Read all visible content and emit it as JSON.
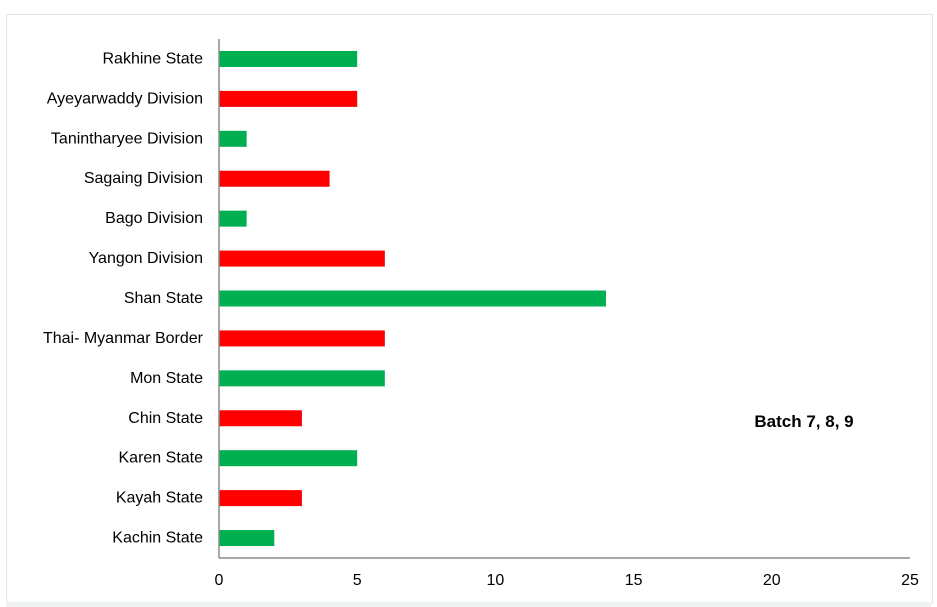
{
  "chart_data": {
    "type": "bar",
    "orientation": "horizontal",
    "categories": [
      "Rakhine State",
      "Ayeyarwaddy Division",
      "Tanintharyee Division",
      "Sagaing Division",
      "Bago Division",
      "Yangon Division",
      "Shan State",
      "Thai- Myanmar Border",
      "Mon State",
      "Chin State",
      "Karen State",
      "Kayah State",
      "Kachin State"
    ],
    "values": [
      5,
      5,
      1,
      4,
      1,
      6,
      14,
      6,
      6,
      3,
      5,
      3,
      2
    ],
    "bar_colors": [
      "#00b050",
      "#ff0000",
      "#00b050",
      "#ff0000",
      "#00b050",
      "#ff0000",
      "#00b050",
      "#ff0000",
      "#00b050",
      "#ff0000",
      "#00b050",
      "#ff0000",
      "#00b050"
    ],
    "x_ticks": [
      "0",
      "5",
      "10",
      "15",
      "20",
      "25"
    ],
    "xlim": [
      0,
      25
    ],
    "title": "",
    "xlabel": "",
    "ylabel": "",
    "grid": false,
    "legend": "none",
    "annotation": "Batch 7, 8, 9"
  },
  "colors": {
    "green": "#00b050",
    "red": "#ff0000",
    "axis": "#8c8c8c"
  }
}
